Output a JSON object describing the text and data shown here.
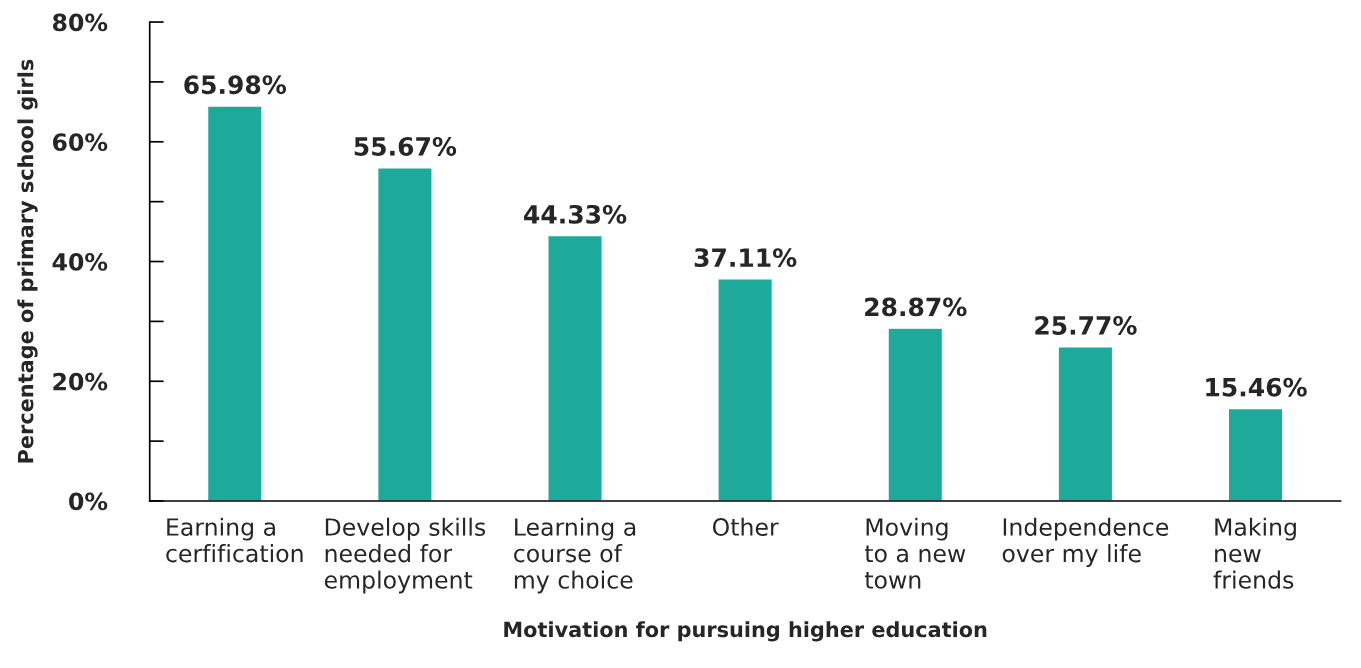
{
  "chart_data": {
    "type": "bar",
    "xlabel": "Motivation for pursuing higher education",
    "ylabel": "Percentage of primary school girls",
    "categories": [
      "Earning a\ncerfification",
      "Develop skills\nneeded for\nemployment",
      "Learning a\ncourse of\nmy choice",
      "Other",
      "Moving\nto a new\ntown",
      "Independence\nover my life",
      "Making\nnew\nfriends"
    ],
    "values": [
      65.98,
      55.67,
      44.33,
      37.11,
      28.87,
      25.77,
      15.46
    ],
    "value_labels": [
      "65.98%",
      "55.67%",
      "44.33%",
      "37.11%",
      "28.87%",
      "25.77%",
      "15.46%"
    ],
    "color": "#1eaa9b",
    "ylim": [
      0,
      80
    ],
    "yticks": [
      {
        "value": 0,
        "label": "0%"
      },
      {
        "value": 10,
        "label": null
      },
      {
        "value": 20,
        "label": "20%"
      },
      {
        "value": 30,
        "label": null
      },
      {
        "value": 40,
        "label": "40%"
      },
      {
        "value": 50,
        "label": null
      },
      {
        "value": 60,
        "label": "60%"
      },
      {
        "value": 70,
        "label": null
      },
      {
        "value": 80,
        "label": "80%"
      }
    ],
    "grid": false,
    "legend": false
  }
}
